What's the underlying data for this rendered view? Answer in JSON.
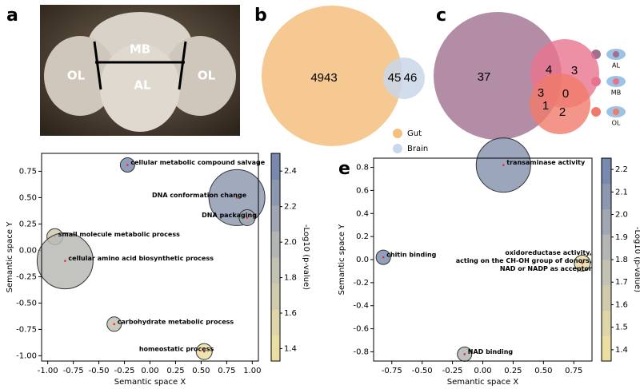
{
  "chart_data": [
    {
      "type": "image",
      "panel": "a",
      "labels": [
        "OL",
        "MB",
        "AL",
        "OL"
      ]
    },
    {
      "type": "venn",
      "panel": "b",
      "values": [
        4943,
        45,
        46
      ],
      "sets": [
        {
          "name": "Gut",
          "color": "#f5c07f"
        },
        {
          "name": "Brain",
          "color": "#c9d7ea"
        }
      ]
    },
    {
      "type": "venn",
      "panel": "c",
      "values": [
        37,
        4,
        3,
        3,
        0,
        1,
        2
      ],
      "sets": [
        {
          "name": "AL",
          "color": "#a0708e"
        },
        {
          "name": "MB",
          "color": "#e8738f"
        },
        {
          "name": "OL",
          "color": "#f07a6a"
        }
      ]
    },
    {
      "type": "bubble",
      "panel": "e_d",
      "x_label": "Semantic space X",
      "y_label": "Semantic space Y",
      "colorbar_label": "-Log10 (p-value)",
      "colormap": [
        "#f2e3a0",
        "#bdbdb6",
        "#6f82ad"
      ],
      "clim": [
        1.33,
        2.5
      ],
      "cticks": [
        1.4,
        1.6,
        1.8,
        {
          "value": 2.0,
          "label": "2.0"
        },
        2.2,
        2.4
      ],
      "labels": [
        "cellular metabolic compound salvage",
        "DNA conformation change",
        "DNA packaging",
        "small molecule metabolic process",
        "cellular amino acid biosynthetic process",
        "carbohydrate metabolic process",
        "homeostatic process"
      ],
      "x": [
        -0.22,
        0.85,
        0.95,
        -0.93,
        -0.83,
        -0.35,
        0.53
      ],
      "y": [
        0.81,
        0.5,
        0.31,
        0.13,
        -0.1,
        -0.7,
        -0.96
      ],
      "sizes": [
        9,
        35,
        10,
        10,
        35,
        9,
        10
      ],
      "colors": [
        2.4,
        2.25,
        2.1,
        1.7,
        1.95,
        1.85,
        1.4
      ],
      "xlim": [
        -1.06,
        1.06
      ],
      "ylim": [
        -1.05,
        0.92
      ],
      "xticks": [
        {
          "value": -1,
          "label": "-1.00"
        },
        {
          "value": -0.75,
          "label": "-0.75"
        },
        {
          "value": -0.5,
          "label": "-0.50"
        },
        {
          "value": -0.25,
          "label": "-0.25"
        },
        {
          "value": 0,
          "label": "0.00"
        },
        {
          "value": 0.25,
          "label": "0.25"
        },
        {
          "value": 0.5,
          "label": "0.50"
        },
        {
          "value": 0.75,
          "label": "0.75"
        },
        {
          "value": 1,
          "label": "1.00"
        }
      ],
      "yticks": [
        {
          "value": -1,
          "label": "-1.00"
        },
        {
          "value": -0.75,
          "label": "-0.75"
        },
        {
          "value": -0.5,
          "label": "-0.50"
        },
        {
          "value": -0.25,
          "label": "-0.25"
        },
        {
          "value": 0,
          "label": "0.00"
        },
        {
          "value": 0.25,
          "label": "0.25"
        },
        {
          "value": 0.5,
          "label": "0.50"
        },
        {
          "value": 0.75,
          "label": "0.75"
        }
      ]
    },
    {
      "type": "bubble",
      "panel": "e",
      "x_label": "Semantic space X",
      "y_label": "Semantic space Y",
      "colorbar_label": "-Log10 (p-value)",
      "colormap": [
        "#f2e3a0",
        "#bdbdb6",
        "#6f82ad"
      ],
      "clim": [
        1.35,
        2.25
      ],
      "cticks": [
        1.4,
        1.5,
        1.6,
        1.7,
        1.8,
        1.9,
        {
          "value": 2.0,
          "label": "2.0"
        },
        2.1,
        2.2
      ],
      "labels": [
        [
          "transaminase activity"
        ],
        [
          "chitin binding"
        ],
        [
          "oxidoreductase activity,",
          "acting on the CH-OH group of donors,",
          "NAD or NADP as acceptor"
        ],
        [
          "NAD binding"
        ]
      ],
      "x": [
        0.17,
        -0.82,
        0.82,
        -0.15
      ],
      "y": [
        0.82,
        0.02,
        -0.03,
        -0.82
      ],
      "sizes": [
        34,
        9,
        10,
        9
      ],
      "colors": [
        2.1,
        2.15,
        1.45,
        1.85
      ],
      "xlim": [
        -0.9,
        0.9
      ],
      "ylim": [
        -0.88,
        0.88
      ],
      "xticks": [
        {
          "value": -0.75,
          "label": "-0.75"
        },
        {
          "value": -0.5,
          "label": "-0.50"
        },
        {
          "value": -0.25,
          "label": "-0.25"
        },
        {
          "value": 0,
          "label": "0.00"
        },
        {
          "value": 0.25,
          "label": "0.25"
        },
        {
          "value": 0.5,
          "label": "0.50"
        },
        {
          "value": 0.75,
          "label": "0.75"
        }
      ],
      "yticks": [
        -0.8,
        -0.6,
        -0.4,
        -0.2,
        {
          "value": 0,
          "label": "0.0"
        },
        0.2,
        0.4,
        0.6,
        0.8
      ]
    }
  ]
}
